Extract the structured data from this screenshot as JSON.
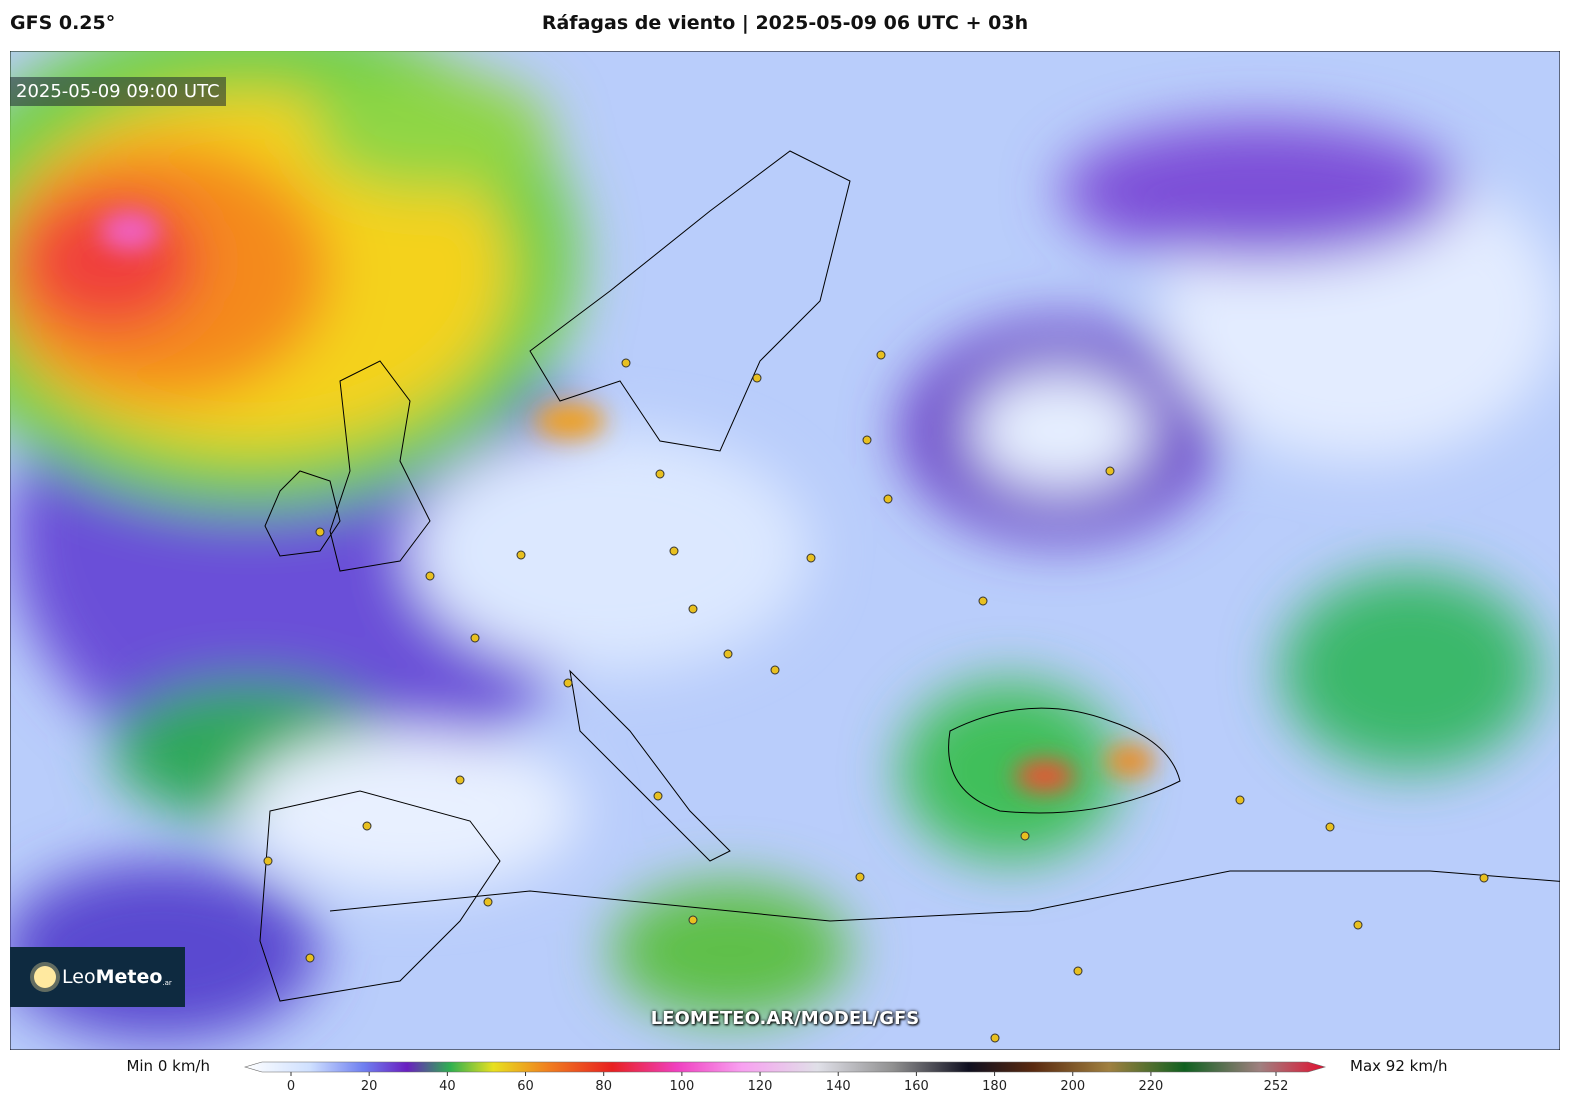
{
  "header": {
    "model": "GFS 0.25°",
    "title": "Ráfagas de viento | 2025-05-09 06 UTC + 03h"
  },
  "map": {
    "timestamp": "2025-05-09 09:00 UTC",
    "watermark": "LEOMETEO.AR/MODEL/GFS",
    "logo": {
      "prefix": "Leo",
      "name": "Meteo",
      "suffix": ".ar"
    }
  },
  "legend": {
    "min_label": "Min 0 km/h",
    "max_label": "Max 92 km/h",
    "ticks": [
      0,
      20,
      40,
      60,
      80,
      100,
      120,
      140,
      160,
      180,
      200,
      220,
      252
    ]
  }
}
